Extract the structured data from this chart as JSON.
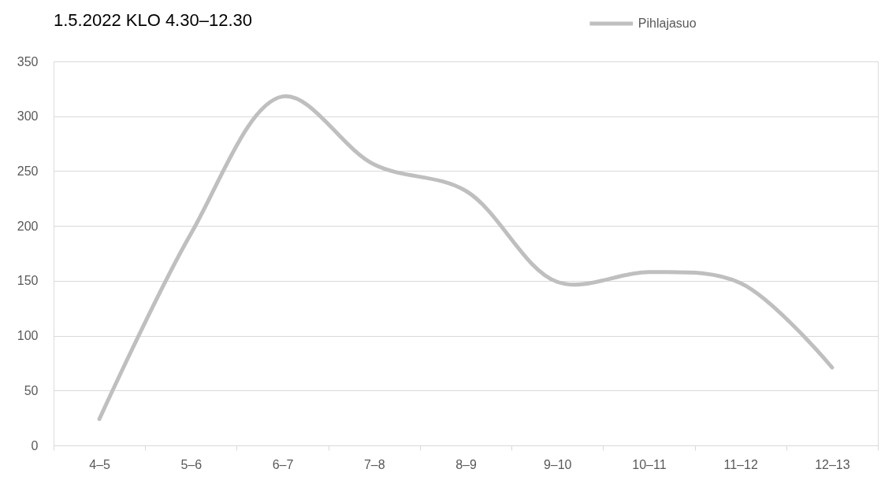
{
  "chart_data": {
    "type": "line",
    "title": "1.5.2022 KLO 4.30–12.30",
    "categories": [
      "4–5",
      "5–6",
      "6–7",
      "7–8",
      "8–9",
      "9–10",
      "10–11",
      "11–12",
      "12–13"
    ],
    "series": [
      {
        "name": "Pihlajasuo",
        "color": "#bfbfbf",
        "values": [
          24,
          193,
          318,
          256,
          232,
          149,
          158,
          148,
          71
        ]
      }
    ],
    "ylim": [
      0,
      350
    ],
    "yticks": [
      0,
      50,
      100,
      150,
      200,
      250,
      300,
      350
    ],
    "grid": "y",
    "legend": "top right",
    "line_style": "solid"
  }
}
